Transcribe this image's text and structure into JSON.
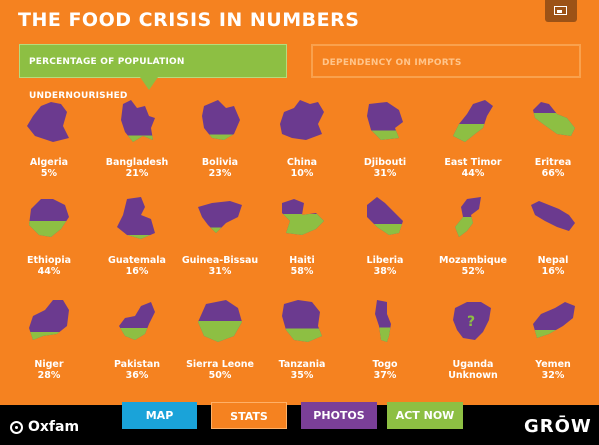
{
  "header": {
    "title": "THE FOOD CRISIS IN NUMBERS"
  },
  "tabs": [
    {
      "label": "PERCENTAGE OF POPULATION UNDERNOURISHED",
      "active": true
    },
    {
      "label": "DEPENDENCY ON IMPORTS",
      "active": false
    }
  ],
  "colors": {
    "background": "#f58220",
    "shape_top": "#6b3a8f",
    "shape_fill": "#8dbf43"
  },
  "countries": [
    {
      "name": "Algeria",
      "value": "5%",
      "fill": 0.05
    },
    {
      "name": "Bangladesh",
      "value": "21%",
      "fill": 0.21
    },
    {
      "name": "Bolivia",
      "value": "23%",
      "fill": 0.23
    },
    {
      "name": "China",
      "value": "10%",
      "fill": 0.1
    },
    {
      "name": "Djibouti",
      "value": "31%",
      "fill": 0.31
    },
    {
      "name": "East Timor",
      "value": "44%",
      "fill": 0.44
    },
    {
      "name": "Eritrea",
      "value": "66%",
      "fill": 0.66
    },
    {
      "name": "Ethiopia",
      "value": "44%",
      "fill": 0.44
    },
    {
      "name": "Guatemala",
      "value": "16%",
      "fill": 0.16
    },
    {
      "name": "Guinea-Bissau",
      "value": "31%",
      "fill": 0.31
    },
    {
      "name": "Haiti",
      "value": "58%",
      "fill": 0.58
    },
    {
      "name": "Liberia",
      "value": "38%",
      "fill": 0.38
    },
    {
      "name": "Mozambique",
      "value": "52%",
      "fill": 0.52
    },
    {
      "name": "Nepal",
      "value": "16%",
      "fill": 0.16
    },
    {
      "name": "Niger",
      "value": "28%",
      "fill": 0.28
    },
    {
      "name": "Pakistan",
      "value": "36%",
      "fill": 0.36
    },
    {
      "name": "Sierra Leone",
      "value": "50%",
      "fill": 0.5
    },
    {
      "name": "Tanzania",
      "value": "35%",
      "fill": 0.35
    },
    {
      "name": "Togo",
      "value": "37%",
      "fill": 0.37
    },
    {
      "name": "Uganda",
      "value": "Unknown",
      "fill": 0,
      "unknown_mark": "?"
    },
    {
      "name": "Yemen",
      "value": "32%",
      "fill": 0.32
    }
  ],
  "footer": {
    "logo": "Oxfam",
    "nav": [
      {
        "label": "MAP",
        "color": "#1aa3d9"
      },
      {
        "label": "STATS",
        "color": "#f58220"
      },
      {
        "label": "PHOTOS",
        "color": "#7b3f98"
      },
      {
        "label": "ACT NOW",
        "color": "#8dbf43"
      }
    ],
    "brand": "GRŌW"
  }
}
